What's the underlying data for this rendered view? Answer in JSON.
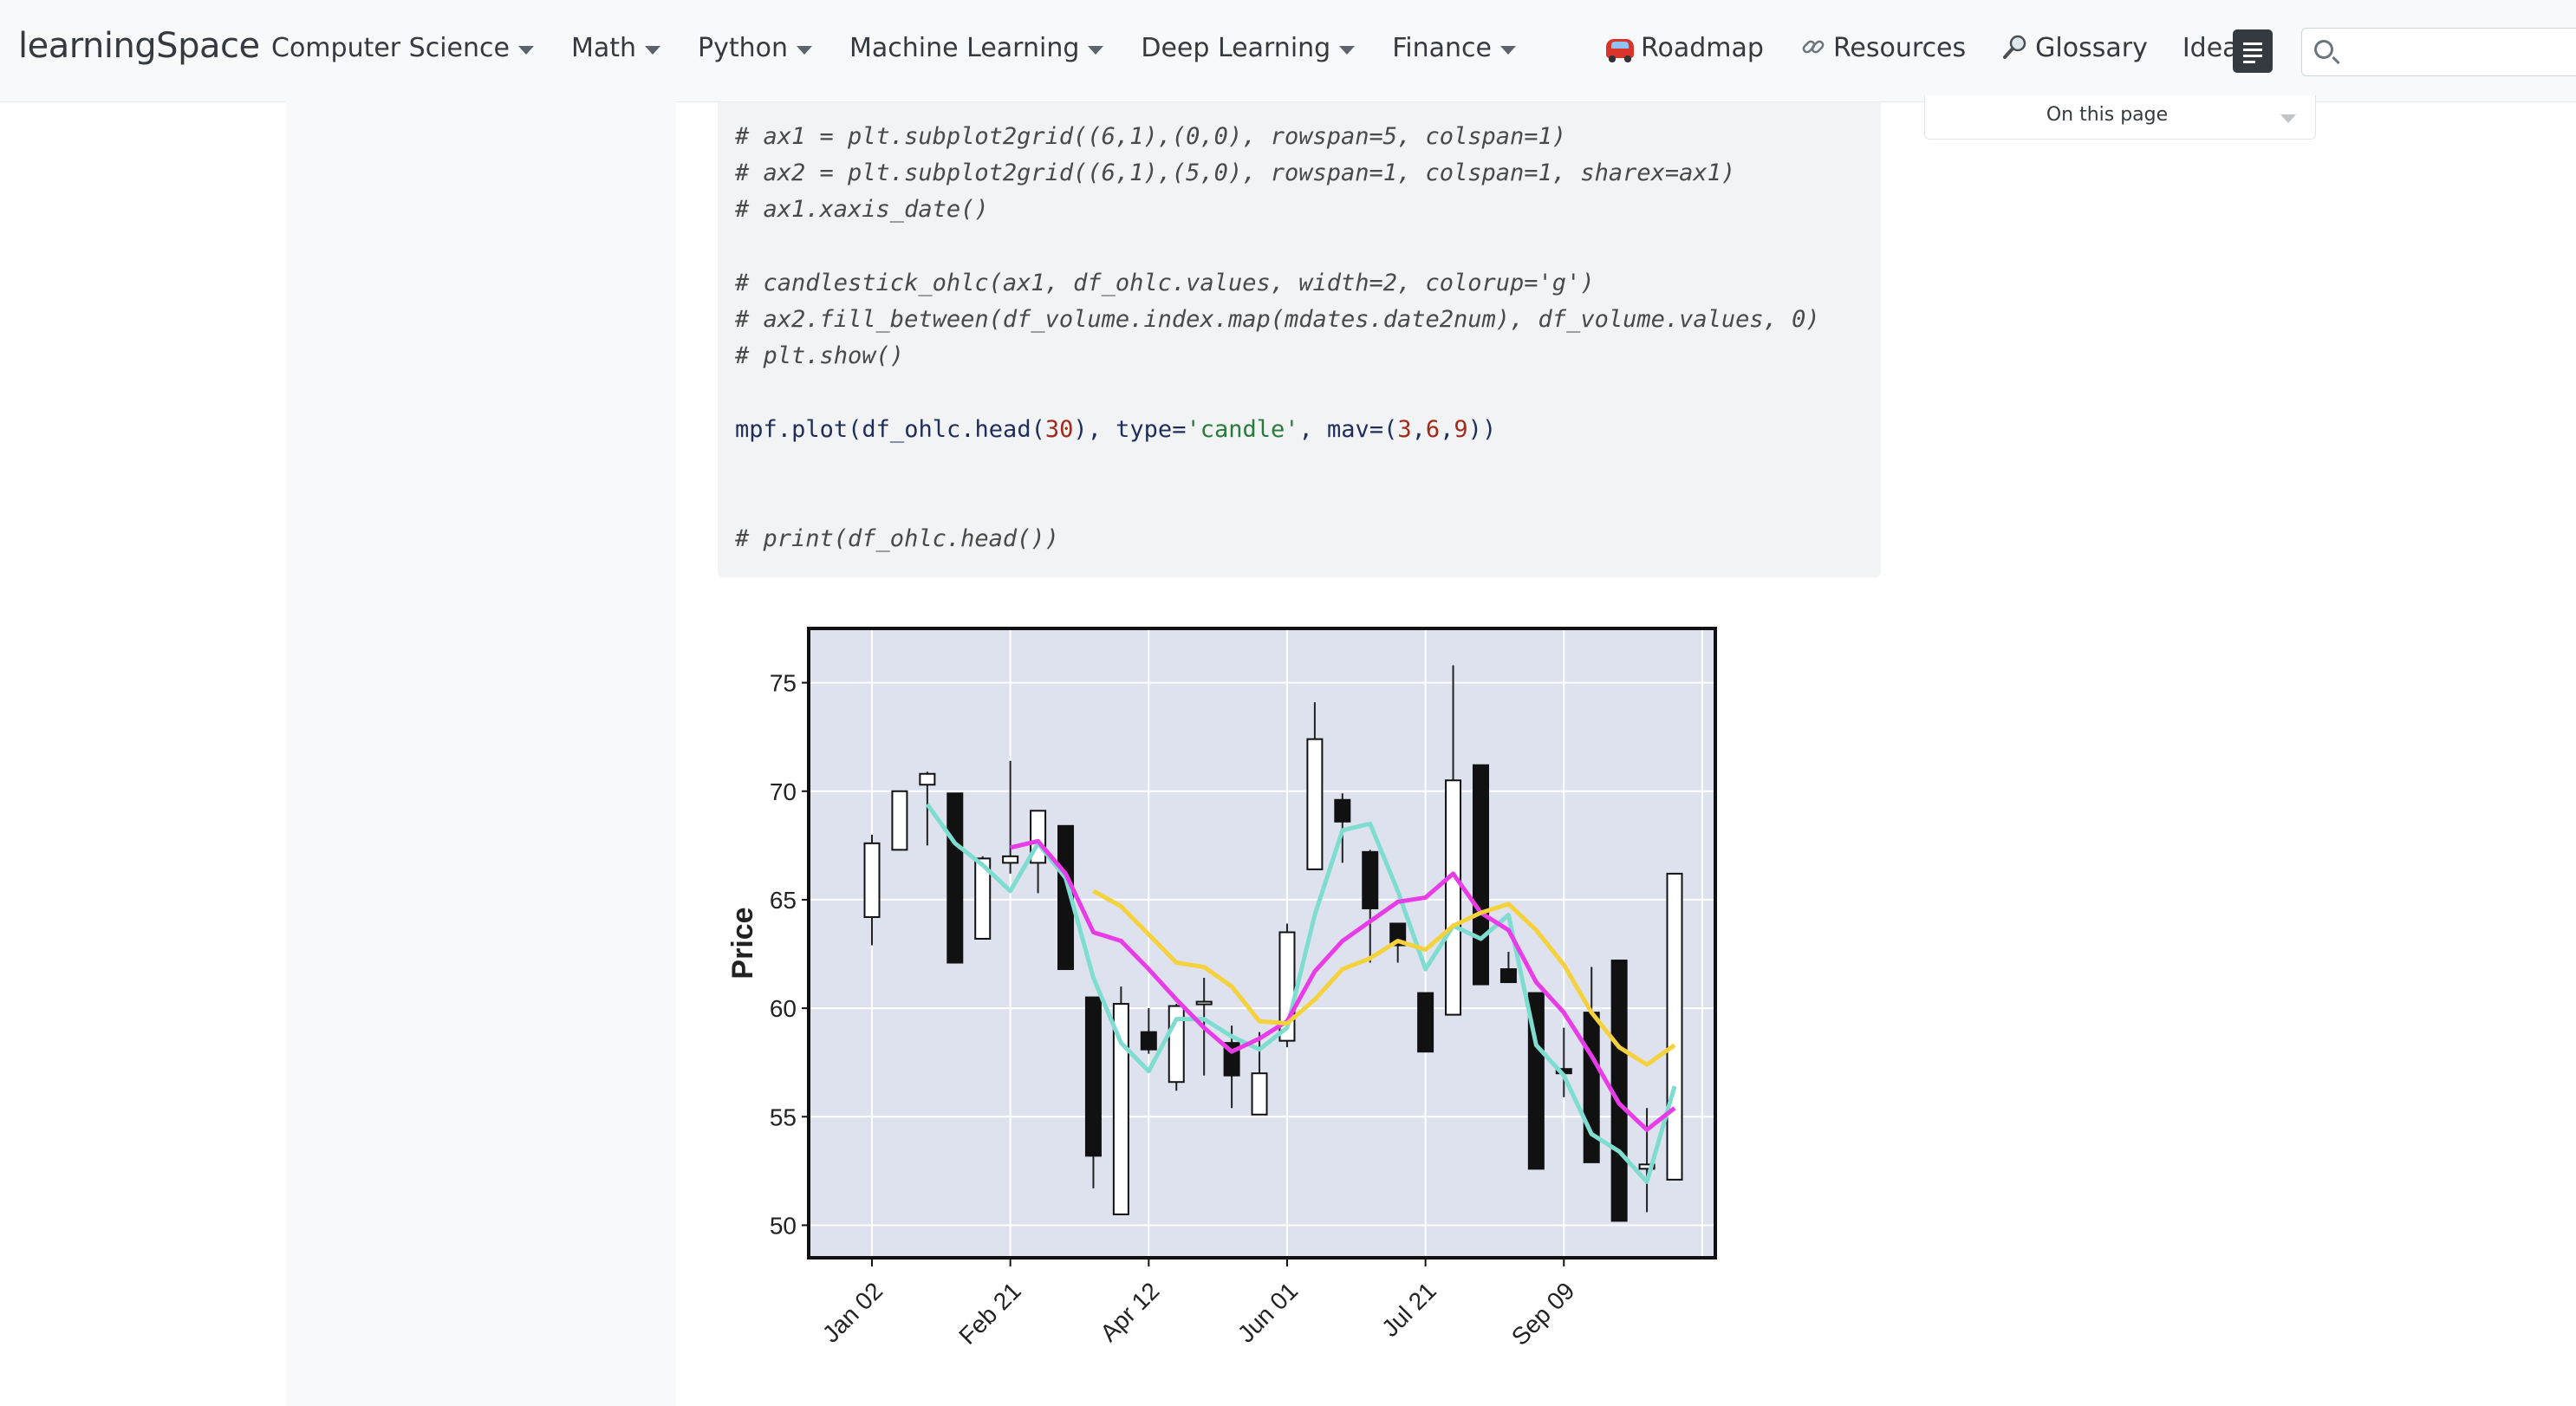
{
  "navbar": {
    "brand": "learningSpace",
    "menus": [
      {
        "label": "Computer Science"
      },
      {
        "label": "Math"
      },
      {
        "label": "Python"
      },
      {
        "label": "Machine Learning"
      },
      {
        "label": "Deep Learning"
      },
      {
        "label": "Finance"
      }
    ],
    "links": {
      "roadmap": "Roadmap",
      "resources": "Resources",
      "glossary": "Glossary",
      "ideas": "Ideas"
    },
    "icons": {
      "roadmap": "car-icon",
      "resources": "link-icon",
      "glossary": "magnifier-icon",
      "toc": "toc-list-icon",
      "search": "search-icon"
    },
    "search_placeholder": ""
  },
  "toc": {
    "title": "On this page"
  },
  "code": {
    "lines": [
      "# ax1 = plt.subplot2grid((6,1),(0,0), rowspan=5, colspan=1)",
      "# ax2 = plt.subplot2grid((6,1),(5,0), rowspan=1, colspan=1, sharex=ax1)",
      "# ax1.xaxis_date()",
      "",
      "# candlestick_ohlc(ax1, df_ohlc.values, width=2, colorup='g')",
      "# ax2.fill_between(df_volume.index.map(mdates.date2num), df_volume.values, 0)",
      "# plt.show()",
      "",
      "mpf.plot(df_ohlc.head(30), type='candle', mav=(3,6,9))",
      "",
      "",
      "# print(df_ohlc.head())"
    ]
  },
  "colors": {
    "chart_bg": "#dde2ee",
    "mav3": "#7fdcd0",
    "mav6": "#e83ce8",
    "mav9": "#f5d23c",
    "up": "#ffffff",
    "down": "#111111"
  },
  "chart_data": {
    "type": "candlestick",
    "ylabel": "Price",
    "ylim": [
      48.5,
      77.5
    ],
    "yticks": [
      50,
      55,
      60,
      65,
      70,
      75
    ],
    "xtick_labels": [
      "Jan 02",
      "Feb 21",
      "Apr 12",
      "Jun 01",
      "Jul 21",
      "Sep 09"
    ],
    "xtick_index": [
      0,
      5,
      10,
      15,
      20,
      25
    ],
    "grid": true,
    "candles": [
      {
        "o": 64.2,
        "h": 68.0,
        "l": 62.9,
        "c": 67.6
      },
      {
        "o": 67.3,
        "h": 70.0,
        "l": 67.3,
        "c": 70.0
      },
      {
        "o": 70.3,
        "h": 70.9,
        "l": 67.5,
        "c": 70.8
      },
      {
        "o": 69.9,
        "h": 69.9,
        "l": 62.1,
        "c": 62.1
      },
      {
        "o": 63.2,
        "h": 67.0,
        "l": 63.2,
        "c": 66.9
      },
      {
        "o": 66.7,
        "h": 71.4,
        "l": 66.2,
        "c": 67.0
      },
      {
        "o": 66.7,
        "h": 69.1,
        "l": 65.3,
        "c": 69.1
      },
      {
        "o": 68.4,
        "h": 68.4,
        "l": 61.8,
        "c": 61.8
      },
      {
        "o": 60.5,
        "h": 60.5,
        "l": 51.7,
        "c": 53.2
      },
      {
        "o": 50.5,
        "h": 61.0,
        "l": 50.5,
        "c": 60.2
      },
      {
        "o": 58.9,
        "h": 60.0,
        "l": 57.9,
        "c": 58.1
      },
      {
        "o": 56.6,
        "h": 60.2,
        "l": 56.2,
        "c": 60.1
      },
      {
        "o": 60.2,
        "h": 61.4,
        "l": 56.9,
        "c": 60.3
      },
      {
        "o": 58.4,
        "h": 59.2,
        "l": 55.4,
        "c": 56.9
      },
      {
        "o": 55.1,
        "h": 58.9,
        "l": 55.1,
        "c": 57.0
      },
      {
        "o": 58.5,
        "h": 63.9,
        "l": 58.2,
        "c": 63.5
      },
      {
        "o": 66.4,
        "h": 74.1,
        "l": 66.4,
        "c": 72.4
      },
      {
        "o": 69.6,
        "h": 69.9,
        "l": 66.7,
        "c": 68.6
      },
      {
        "o": 67.2,
        "h": 67.3,
        "l": 62.1,
        "c": 64.6
      },
      {
        "o": 63.9,
        "h": 63.9,
        "l": 62.1,
        "c": 62.9
      },
      {
        "o": 60.7,
        "h": 60.7,
        "l": 58.0,
        "c": 58.0
      },
      {
        "o": 59.7,
        "h": 75.8,
        "l": 59.7,
        "c": 70.5
      },
      {
        "o": 71.2,
        "h": 71.2,
        "l": 61.1,
        "c": 61.1
      },
      {
        "o": 61.8,
        "h": 62.6,
        "l": 61.2,
        "c": 61.2
      },
      {
        "o": 60.7,
        "h": 60.7,
        "l": 52.6,
        "c": 52.6
      },
      {
        "o": 57.2,
        "h": 59.1,
        "l": 55.9,
        "c": 57.0
      },
      {
        "o": 59.8,
        "h": 61.9,
        "l": 52.9,
        "c": 52.9
      },
      {
        "o": 62.2,
        "h": 62.2,
        "l": 50.2,
        "c": 50.2
      },
      {
        "o": 52.6,
        "h": 55.4,
        "l": 50.6,
        "c": 52.8
      },
      {
        "o": 52.1,
        "h": 66.2,
        "l": 52.1,
        "c": 66.2
      }
    ],
    "series": [
      {
        "window": 3,
        "values": [
          null,
          null,
          69.4,
          67.6,
          66.6,
          65.4,
          67.6,
          66.0,
          61.4,
          58.4,
          57.1,
          59.5,
          59.5,
          58.7,
          58.1,
          59.1,
          64.3,
          68.2,
          68.5,
          65.4,
          61.8,
          63.8,
          63.2,
          64.3,
          58.3,
          56.9,
          54.2,
          53.4,
          52.0,
          56.4
        ]
      },
      {
        "window": 6,
        "values": [
          null,
          null,
          null,
          null,
          null,
          67.4,
          67.7,
          66.2,
          63.5,
          63.1,
          61.8,
          60.4,
          59.1,
          58.0,
          58.6,
          59.4,
          61.7,
          63.1,
          64.0,
          64.9,
          65.1,
          66.2,
          64.4,
          63.6,
          61.2,
          59.8,
          57.8,
          55.6,
          54.4,
          55.4
        ]
      },
      {
        "window": 9,
        "values": [
          null,
          null,
          null,
          null,
          null,
          null,
          null,
          null,
          65.4,
          64.7,
          63.4,
          62.1,
          61.9,
          61.0,
          59.4,
          59.3,
          60.4,
          61.8,
          62.3,
          63.1,
          62.7,
          63.8,
          64.4,
          64.8,
          63.6,
          62.0,
          59.8,
          58.2,
          57.4,
          58.3
        ]
      }
    ]
  }
}
